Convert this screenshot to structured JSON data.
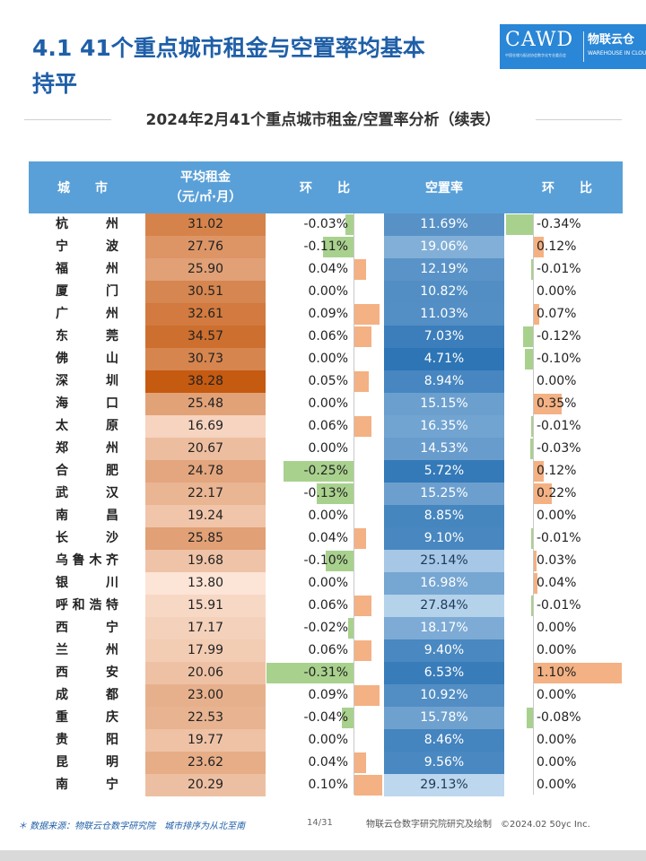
{
  "header": {
    "title": "4.1 41个重点城市租金与空置率均基本持平",
    "logo": {
      "text": "CAWD",
      "sub": "中国仓储与配送协会数字化专业委员会",
      "cn": "物联云仓",
      "en": "WAREHOUSE IN CLOUD"
    }
  },
  "table": {
    "title": "2024年2月41个重点城市租金/空置率分析（续表）",
    "columns": {
      "city": "城　　市",
      "rent_line1": "平均租金",
      "rent_line2": "（元/㎡·月）",
      "rent_change": "环　　比",
      "vacancy": "空置率",
      "vacancy_change": "环　　比"
    }
  },
  "colors": {
    "header_bg": "#5aa0d8",
    "positive_bar": "#f4b183",
    "negative_bar": "#a9d18e",
    "rent_scale": [
      "#fce4d6",
      "#c55a11"
    ],
    "vacancy_scale": [
      "#bdd7ee",
      "#2e75b6"
    ]
  },
  "rows": [
    {
      "city": "杭州",
      "rent": "31.02",
      "rent_change": "-0.03%",
      "vacancy": "11.69%",
      "vacancy_change": "-0.34%"
    },
    {
      "city": "宁波",
      "rent": "27.76",
      "rent_change": "-0.11%",
      "vacancy": "19.06%",
      "vacancy_change": "0.12%"
    },
    {
      "city": "福州",
      "rent": "25.90",
      "rent_change": "0.04%",
      "vacancy": "12.19%",
      "vacancy_change": "-0.01%"
    },
    {
      "city": "厦门",
      "rent": "30.51",
      "rent_change": "0.00%",
      "vacancy": "10.82%",
      "vacancy_change": "0.00%"
    },
    {
      "city": "广州",
      "rent": "32.61",
      "rent_change": "0.09%",
      "vacancy": "11.03%",
      "vacancy_change": "0.07%"
    },
    {
      "city": "东莞",
      "rent": "34.57",
      "rent_change": "0.06%",
      "vacancy": "7.03%",
      "vacancy_change": "-0.12%"
    },
    {
      "city": "佛山",
      "rent": "30.73",
      "rent_change": "0.00%",
      "vacancy": "4.71%",
      "vacancy_change": "-0.10%"
    },
    {
      "city": "深圳",
      "rent": "38.28",
      "rent_change": "0.05%",
      "vacancy": "8.94%",
      "vacancy_change": "0.00%"
    },
    {
      "city": "海口",
      "rent": "25.48",
      "rent_change": "0.00%",
      "vacancy": "15.15%",
      "vacancy_change": "0.35%"
    },
    {
      "city": "太原",
      "rent": "16.69",
      "rent_change": "0.06%",
      "vacancy": "16.35%",
      "vacancy_change": "-0.01%"
    },
    {
      "city": "郑州",
      "rent": "20.67",
      "rent_change": "0.00%",
      "vacancy": "14.53%",
      "vacancy_change": "-0.03%"
    },
    {
      "city": "合肥",
      "rent": "24.78",
      "rent_change": "-0.25%",
      "vacancy": "5.72%",
      "vacancy_change": "0.12%"
    },
    {
      "city": "武汉",
      "rent": "22.17",
      "rent_change": "-0.13%",
      "vacancy": "15.25%",
      "vacancy_change": "0.22%"
    },
    {
      "city": "南昌",
      "rent": "19.24",
      "rent_change": "0.00%",
      "vacancy": "8.85%",
      "vacancy_change": "0.00%"
    },
    {
      "city": "长沙",
      "rent": "25.85",
      "rent_change": "0.04%",
      "vacancy": "9.10%",
      "vacancy_change": "-0.01%"
    },
    {
      "city": "乌鲁木齐",
      "rent": "19.68",
      "rent_change": "-0.10%",
      "vacancy": "25.14%",
      "vacancy_change": "0.03%"
    },
    {
      "city": "银川",
      "rent": "13.80",
      "rent_change": "0.00%",
      "vacancy": "16.98%",
      "vacancy_change": "0.04%"
    },
    {
      "city": "呼和浩特",
      "rent": "15.91",
      "rent_change": "0.06%",
      "vacancy": "27.84%",
      "vacancy_change": "-0.01%"
    },
    {
      "city": "西宁",
      "rent": "17.17",
      "rent_change": "-0.02%",
      "vacancy": "18.17%",
      "vacancy_change": "0.00%"
    },
    {
      "city": "兰州",
      "rent": "17.99",
      "rent_change": "0.06%",
      "vacancy": "9.40%",
      "vacancy_change": "0.00%"
    },
    {
      "city": "西安",
      "rent": "20.06",
      "rent_change": "-0.31%",
      "vacancy": "6.53%",
      "vacancy_change": "1.10%"
    },
    {
      "city": "成都",
      "rent": "23.00",
      "rent_change": "0.09%",
      "vacancy": "10.92%",
      "vacancy_change": "0.00%"
    },
    {
      "city": "重庆",
      "rent": "22.53",
      "rent_change": "-0.04%",
      "vacancy": "15.78%",
      "vacancy_change": "-0.08%"
    },
    {
      "city": "贵阳",
      "rent": "19.77",
      "rent_change": "0.00%",
      "vacancy": "8.46%",
      "vacancy_change": "0.00%"
    },
    {
      "city": "昆明",
      "rent": "23.62",
      "rent_change": "0.04%",
      "vacancy": "9.56%",
      "vacancy_change": "0.00%"
    },
    {
      "city": "南宁",
      "rent": "20.29",
      "rent_change": "0.10%",
      "vacancy": "29.13%",
      "vacancy_change": "0.00%"
    }
  ],
  "footer": {
    "source": "＊ 数据来源：物联云仓数字研究院　城市排序为从北至南",
    "page": "14/31",
    "credit": "物联云仓数字研究院研究及绘制　©2024.02 50yc Inc."
  }
}
